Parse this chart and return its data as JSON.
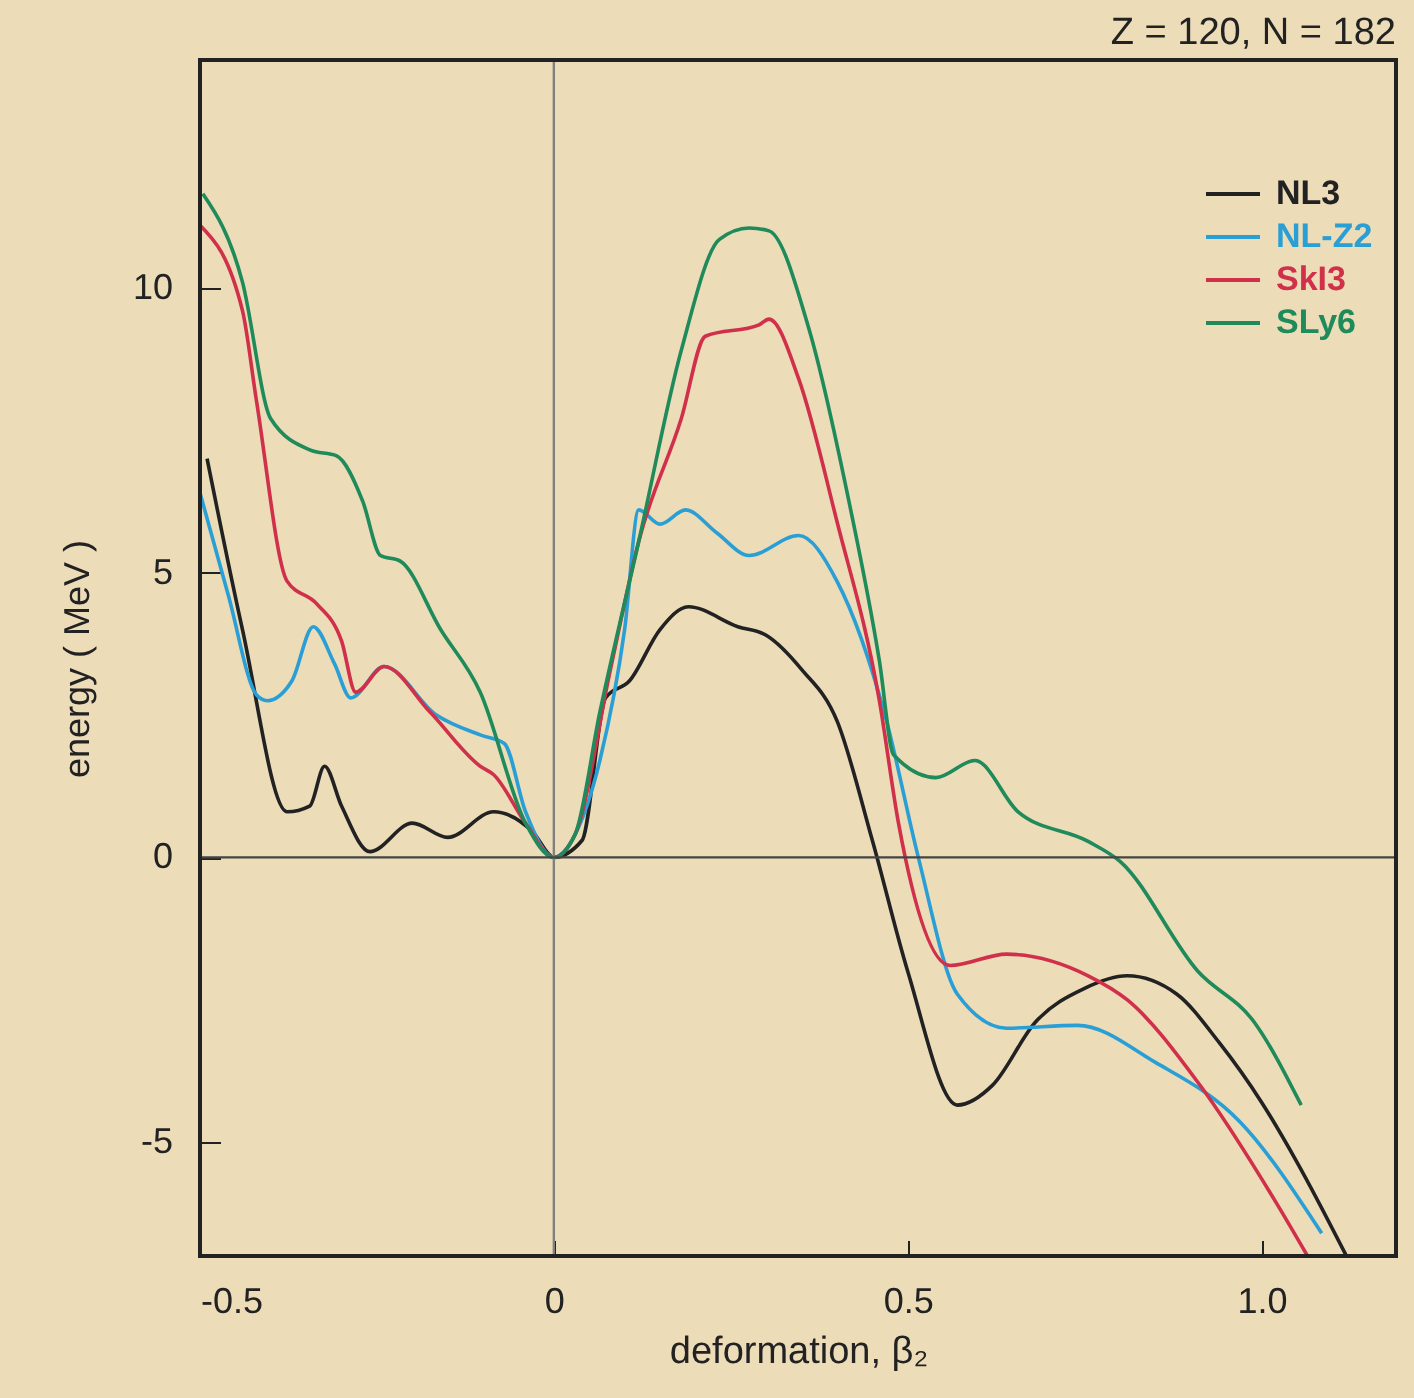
{
  "chart_data": {
    "type": "line",
    "xlabel": "deformation, β₂",
    "ylabel": "energy  ( MeV )",
    "annotations": [
      "Z = 120,  N = 182"
    ],
    "xlim": [
      -0.5,
      1.19
    ],
    "ylim": [
      -7,
      14
    ],
    "xticks": [
      -0.5,
      0,
      0.5,
      {
        "value": 1,
        "label": "1.0"
      }
    ],
    "yticks": [
      -5,
      0,
      5,
      10
    ],
    "grid": false,
    "legend": "top right",
    "marker": "none",
    "line_style": "solid",
    "ref_lines": [
      {
        "axis": "x",
        "value": 0,
        "color": "#808080"
      },
      {
        "axis": "y",
        "value": 0,
        "color": "#444444"
      }
    ],
    "series": [
      {
        "name": "NL3",
        "color": "#222222",
        "x": [
          -0.49,
          -0.44,
          -0.377,
          -0.345,
          -0.324,
          -0.3,
          -0.26,
          -0.2,
          -0.15,
          -0.085,
          -0.03,
          0,
          0.04,
          0.073,
          0.107,
          0.15,
          0.19,
          0.26,
          0.3,
          0.35,
          0.4,
          0.45,
          0.5,
          0.57,
          0.62,
          0.68,
          0.75,
          0.81,
          0.88,
          0.94,
          1.0,
          1.05,
          1.12
        ],
        "values": [
          7.0,
          4.0,
          0.8,
          0.9,
          1.6,
          0.9,
          0.1,
          0.6,
          0.35,
          0.8,
          0.45,
          0,
          0.3,
          2.8,
          3.1,
          4.0,
          4.4,
          4.05,
          3.9,
          3.3,
          2.4,
          0.3,
          -2.0,
          -4.35,
          -4.0,
          -2.9,
          -2.3,
          -2.08,
          -2.4,
          -3.25,
          -4.3,
          -5.35,
          -7.0
        ]
      },
      {
        "name": "NL-Z2",
        "color": "#2a9fd6",
        "x": [
          -0.5,
          -0.46,
          -0.42,
          -0.405,
          -0.37,
          -0.34,
          -0.31,
          -0.287,
          -0.24,
          -0.166,
          -0.104,
          -0.07,
          -0.04,
          0,
          0.03,
          0.065,
          0.1,
          0.12,
          0.15,
          0.186,
          0.23,
          0.276,
          0.346,
          0.4,
          0.47,
          0.515,
          0.57,
          0.64,
          0.74,
          0.85,
          0.97,
          1.085
        ],
        "values": [
          6.4,
          4.6,
          2.85,
          2.75,
          3.1,
          4.05,
          3.4,
          2.8,
          3.35,
          2.5,
          2.15,
          2.0,
          0.8,
          0,
          0.4,
          1.7,
          4.0,
          6.1,
          5.85,
          6.1,
          5.7,
          5.3,
          5.65,
          4.85,
          2.4,
          0,
          -2.4,
          -3.0,
          -2.95,
          -3.6,
          -4.65,
          -6.6
        ]
      },
      {
        "name": "SkI3",
        "color": "#d0304a",
        "x": [
          -0.5,
          -0.44,
          -0.42,
          -0.377,
          -0.335,
          -0.3,
          -0.28,
          -0.24,
          -0.175,
          -0.104,
          -0.085,
          -0.04,
          0,
          0.03,
          0.08,
          0.12,
          0.18,
          0.214,
          0.29,
          0.304,
          0.346,
          0.4,
          0.46,
          0.487,
          0.56,
          0.64,
          0.755,
          0.81,
          0.91,
          1.02,
          1.065
        ],
        "values": [
          11.1,
          9.6,
          8.0,
          4.85,
          4.45,
          3.8,
          2.9,
          3.35,
          2.55,
          1.6,
          1.45,
          0.6,
          0,
          0.4,
          3.3,
          5.55,
          7.7,
          9.15,
          9.35,
          9.45,
          8.4,
          5.9,
          2.75,
          0.6,
          -1.9,
          -1.7,
          -2.08,
          -2.5,
          -3.95,
          -6.05,
          -7.0
        ]
      },
      {
        "name": "SLy6",
        "color": "#1f8a5a",
        "x": [
          -0.496,
          -0.44,
          -0.4,
          -0.344,
          -0.307,
          -0.27,
          -0.245,
          -0.217,
          -0.16,
          -0.104,
          -0.04,
          0,
          0.03,
          0.065,
          0.12,
          0.18,
          0.234,
          0.276,
          0.304,
          0.36,
          0.417,
          0.46,
          0.48,
          0.54,
          0.595,
          0.656,
          0.755,
          0.8,
          0.91,
          0.99,
          1.056
        ],
        "values": [
          11.65,
          10.1,
          7.7,
          7.15,
          7.05,
          6.25,
          5.3,
          5.2,
          4.0,
          2.9,
          0.6,
          0,
          0.4,
          2.55,
          5.55,
          8.9,
          10.85,
          11.05,
          11.0,
          9.3,
          6.25,
          3.45,
          1.8,
          1.4,
          1.7,
          0.8,
          0.28,
          -0.07,
          -2.0,
          -2.9,
          -4.35
        ]
      }
    ]
  }
}
